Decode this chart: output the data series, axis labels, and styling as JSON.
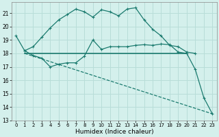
{
  "xlabel": "Humidex (Indice chaleur)",
  "bg_color": "#d4f0ec",
  "grid_color": "#b8ddd8",
  "line_color": "#1a7a6e",
  "xlim": [
    -0.5,
    23.5
  ],
  "ylim": [
    13,
    21.8
  ],
  "yticks": [
    13,
    14,
    15,
    16,
    17,
    18,
    19,
    20,
    21
  ],
  "xticks": [
    0,
    1,
    2,
    3,
    4,
    5,
    6,
    7,
    8,
    9,
    10,
    11,
    12,
    13,
    14,
    15,
    16,
    17,
    18,
    19,
    20,
    21,
    22,
    23
  ],
  "line1_x": [
    0,
    1,
    2,
    3,
    4,
    5,
    6,
    7,
    8,
    9,
    10,
    11,
    12,
    13,
    14,
    15,
    16,
    17,
    18,
    19,
    20,
    21
  ],
  "line1_y": [
    19.3,
    18.2,
    18.5,
    19.2,
    19.9,
    20.5,
    20.9,
    21.3,
    21.1,
    20.7,
    21.25,
    21.1,
    20.8,
    21.3,
    21.4,
    20.5,
    19.8,
    19.3,
    18.6,
    18.5,
    18.1,
    18.0
  ],
  "line2_x": [
    1,
    2,
    3,
    4,
    5,
    6,
    7,
    8,
    9,
    10,
    11,
    12,
    13,
    14,
    15,
    16,
    17,
    18,
    19,
    20
  ],
  "line2_y": [
    18.0,
    18.0,
    18.0,
    18.0,
    18.0,
    18.0,
    18.0,
    18.0,
    18.0,
    18.0,
    18.0,
    18.0,
    18.0,
    18.0,
    18.0,
    18.0,
    18.0,
    18.0,
    18.0,
    18.0
  ],
  "line3_x": [
    1,
    23
  ],
  "line3_y": [
    18.0,
    13.5
  ],
  "line4_x": [
    1,
    2,
    3,
    4,
    5,
    6,
    7,
    8,
    9,
    10,
    11,
    12,
    13,
    14,
    15,
    16,
    17,
    18,
    19,
    20,
    21,
    22,
    23
  ],
  "line4_y": [
    18.2,
    17.85,
    17.65,
    17.0,
    17.2,
    17.3,
    17.3,
    17.8,
    19.0,
    18.3,
    18.5,
    18.5,
    18.5,
    18.6,
    18.65,
    18.6,
    18.7,
    18.65,
    18.1,
    18.0,
    16.8,
    14.7,
    13.5
  ]
}
